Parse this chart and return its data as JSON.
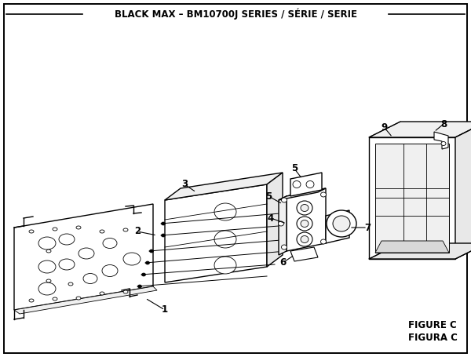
{
  "title": "BLACK MAX – BM10700J SERIES / SÉRIE / SERIE",
  "figure_label": "FIGURE C",
  "figura_label": "FIGURA C",
  "bg_color": "#ffffff",
  "border_color": "#000000",
  "text_color": "#000000",
  "title_fontsize": 8.5,
  "fig_label_fontsize": 8.5,
  "lw_main": 1.0,
  "lw_thin": 0.6,
  "lw_border": 1.4
}
